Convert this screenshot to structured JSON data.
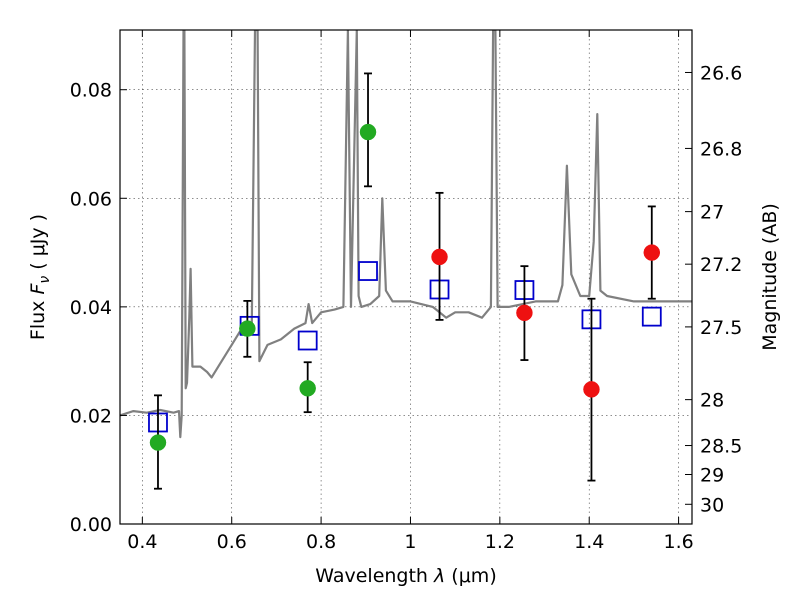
{
  "chart_data": {
    "type": "scatter",
    "title": "",
    "xlabel_prefix": "Wavelength  ",
    "xlabel_symbol": "λ",
    "xlabel_unit": " (μm)",
    "ylabel_prefix": "Flux  ",
    "ylabel_symbol": "F",
    "ylabel_sub": "ν",
    "ylabel_unit": "  ( μJy )",
    "y2label": "Magnitude (AB)",
    "xlim": [
      0.35,
      1.63
    ],
    "ylim": [
      0.0,
      0.091
    ],
    "grid": true,
    "x_ticks": [
      {
        "value": 0.4,
        "label": "0.4"
      },
      {
        "value": 0.6,
        "label": "0.6"
      },
      {
        "value": 0.8,
        "label": "0.8"
      },
      {
        "value": 1.0,
        "label": "1"
      },
      {
        "value": 1.2,
        "label": "1.2"
      },
      {
        "value": 1.4,
        "label": "1.4"
      },
      {
        "value": 1.6,
        "label": "1.6"
      }
    ],
    "y_ticks": [
      {
        "value": 0.0,
        "label": "0.00"
      },
      {
        "value": 0.02,
        "label": "0.02"
      },
      {
        "value": 0.04,
        "label": "0.04"
      },
      {
        "value": 0.06,
        "label": "0.06"
      },
      {
        "value": 0.08,
        "label": "0.08"
      }
    ],
    "y2_ticks": [
      {
        "value": 26.6,
        "label": "26.6"
      },
      {
        "value": 26.8,
        "label": "26.8"
      },
      {
        "value": 27.0,
        "label": "27"
      },
      {
        "value": 27.2,
        "label": "27.2"
      },
      {
        "value": 27.5,
        "label": "27.5"
      },
      {
        "value": 28.0,
        "label": "28"
      },
      {
        "value": 28.5,
        "label": "28.5"
      },
      {
        "value": 29.0,
        "label": "29"
      },
      {
        "value": 30.0,
        "label": "30"
      }
    ],
    "series": [
      {
        "marker": "filled-circle",
        "color": "#22aa22",
        "points": [
          {
            "x": 0.435,
            "y": 0.015,
            "yerr_low": 0.0065,
            "yerr_high": 0.0237
          },
          {
            "x": 0.635,
            "y": 0.036,
            "yerr_low": 0.0308,
            "yerr_high": 0.0411
          },
          {
            "x": 0.77,
            "y": 0.025,
            "yerr_low": 0.0206,
            "yerr_high": 0.0298
          },
          {
            "x": 0.905,
            "y": 0.0722,
            "yerr_low": 0.0622,
            "yerr_high": 0.083
          }
        ]
      },
      {
        "marker": "filled-circle",
        "color": "#ee1111",
        "points": [
          {
            "x": 1.065,
            "y": 0.0492,
            "yerr_low": 0.0376,
            "yerr_high": 0.061
          },
          {
            "x": 1.255,
            "y": 0.0389,
            "yerr_low": 0.0302,
            "yerr_high": 0.0475
          },
          {
            "x": 1.405,
            "y": 0.0248,
            "yerr_low": 0.008,
            "yerr_high": 0.0415
          },
          {
            "x": 1.54,
            "y": 0.05,
            "yerr_low": 0.0415,
            "yerr_high": 0.0585
          }
        ]
      },
      {
        "marker": "open-square",
        "color": "#0000cc",
        "points": [
          {
            "x": 0.435,
            "y": 0.0187
          },
          {
            "x": 0.64,
            "y": 0.0365
          },
          {
            "x": 0.77,
            "y": 0.0338
          },
          {
            "x": 0.905,
            "y": 0.0466
          },
          {
            "x": 1.065,
            "y": 0.0432
          },
          {
            "x": 1.255,
            "y": 0.0431
          },
          {
            "x": 1.405,
            "y": 0.0377
          },
          {
            "x": 1.54,
            "y": 0.0382
          }
        ]
      },
      {
        "marker": "line",
        "color": "#808080",
        "points": [
          [
            0.35,
            0.02
          ],
          [
            0.38,
            0.0208
          ],
          [
            0.41,
            0.0205
          ],
          [
            0.44,
            0.021
          ],
          [
            0.47,
            0.0205
          ],
          [
            0.482,
            0.0208
          ],
          [
            0.485,
            0.016
          ],
          [
            0.488,
            0.02
          ],
          [
            0.492,
            0.091
          ],
          [
            0.494,
            0.091
          ],
          [
            0.497,
            0.025
          ],
          [
            0.5,
            0.026
          ],
          [
            0.505,
            0.038
          ],
          [
            0.508,
            0.047
          ],
          [
            0.512,
            0.029
          ],
          [
            0.53,
            0.029
          ],
          [
            0.545,
            0.028
          ],
          [
            0.555,
            0.027
          ],
          [
            0.57,
            0.029
          ],
          [
            0.6,
            0.033
          ],
          [
            0.63,
            0.037
          ],
          [
            0.645,
            0.037
          ],
          [
            0.652,
            0.091
          ],
          [
            0.658,
            0.091
          ],
          [
            0.662,
            0.03
          ],
          [
            0.68,
            0.033
          ],
          [
            0.71,
            0.034
          ],
          [
            0.74,
            0.036
          ],
          [
            0.765,
            0.037
          ],
          [
            0.772,
            0.0405
          ],
          [
            0.78,
            0.037
          ],
          [
            0.8,
            0.039
          ],
          [
            0.83,
            0.0395
          ],
          [
            0.85,
            0.04
          ],
          [
            0.86,
            0.091
          ],
          [
            0.867,
            0.04
          ],
          [
            0.88,
            0.091
          ],
          [
            0.884,
            0.042
          ],
          [
            0.89,
            0.04
          ],
          [
            0.91,
            0.0405
          ],
          [
            0.93,
            0.042
          ],
          [
            0.937,
            0.06
          ],
          [
            0.945,
            0.043
          ],
          [
            0.96,
            0.041
          ],
          [
            1.0,
            0.041
          ],
          [
            1.05,
            0.04
          ],
          [
            1.08,
            0.038
          ],
          [
            1.1,
            0.039
          ],
          [
            1.13,
            0.039
          ],
          [
            1.16,
            0.038
          ],
          [
            1.18,
            0.04
          ],
          [
            1.185,
            0.091
          ],
          [
            1.19,
            0.091
          ],
          [
            1.195,
            0.04
          ],
          [
            1.22,
            0.04
          ],
          [
            1.28,
            0.041
          ],
          [
            1.33,
            0.041
          ],
          [
            1.34,
            0.044
          ],
          [
            1.35,
            0.066
          ],
          [
            1.36,
            0.046
          ],
          [
            1.38,
            0.042
          ],
          [
            1.4,
            0.042
          ],
          [
            1.41,
            0.052
          ],
          [
            1.418,
            0.0755
          ],
          [
            1.425,
            0.043
          ],
          [
            1.44,
            0.042
          ],
          [
            1.5,
            0.041
          ],
          [
            1.56,
            0.041
          ],
          [
            1.63,
            0.041
          ]
        ]
      }
    ]
  }
}
